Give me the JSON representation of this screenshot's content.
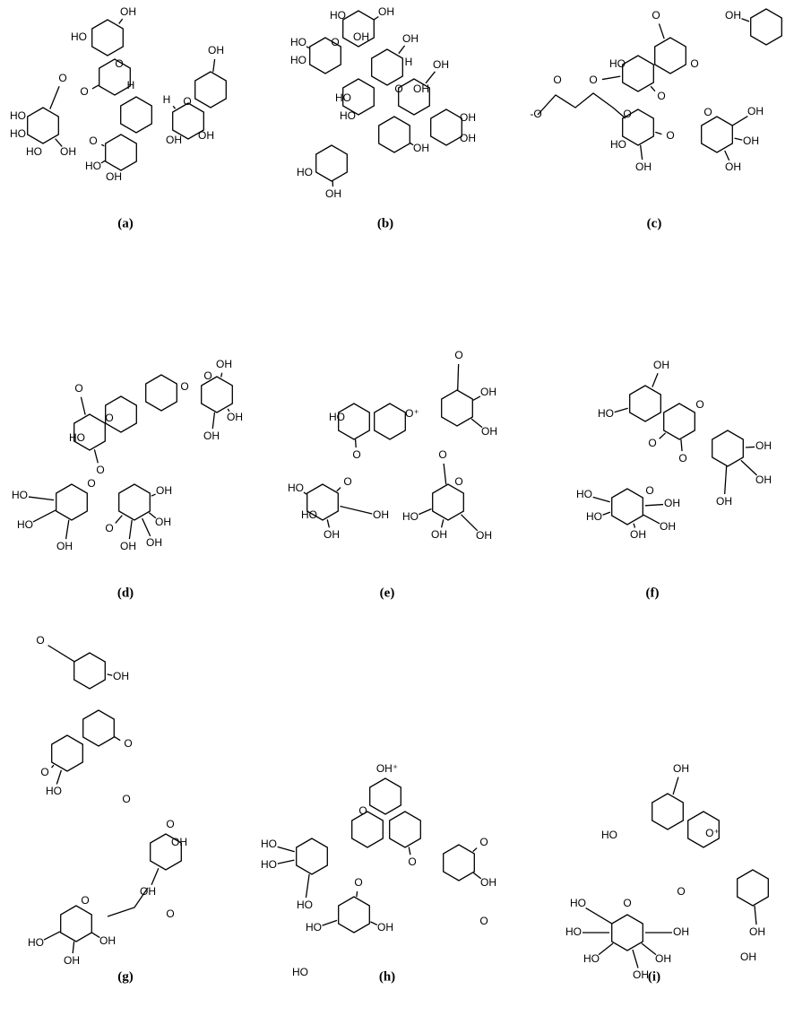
{
  "panels": [
    {
      "label": "(a)",
      "atoms": [
        "OH",
        "HO",
        "O",
        "H",
        "O",
        "O",
        "HO",
        "HO",
        "HO",
        "OH",
        "O",
        "HO",
        "OH",
        "H",
        "O",
        "OH",
        "OH",
        "OH"
      ]
    },
    {
      "label": "(b)",
      "atoms": [
        "HO",
        "OH",
        "HO",
        "HO",
        "O",
        "OH",
        "OH",
        "H",
        "OH",
        "O",
        "OH",
        "HO",
        "HO",
        "OH",
        "OH",
        "HO",
        "OH",
        "OH"
      ]
    },
    {
      "label": "(c)",
      "atoms": [
        "O",
        "OH",
        "HO",
        "O",
        "O",
        "O",
        "-O",
        "O",
        "O",
        "O",
        "OH",
        "O",
        "OH",
        "HO",
        "OH",
        "OH"
      ]
    },
    {
      "label": "(d)",
      "atoms": [
        "OH",
        "O",
        "O",
        "O",
        "O",
        "HO",
        "OH",
        "OH",
        "HO",
        "O",
        "HO",
        "O",
        "O",
        "OH",
        "OH",
        "OH",
        "OH",
        "OH"
      ]
    },
    {
      "label": "(e)",
      "atoms": [
        "O",
        "OH",
        "OH",
        "HO",
        "O⁺",
        "O",
        "O",
        "HO",
        "O",
        "O",
        "HO",
        "OH",
        "OH",
        "HO",
        "OH",
        "OH"
      ]
    },
    {
      "label": "(f)",
      "atoms": [
        "OH",
        "HO",
        "O",
        "O",
        "O",
        "OH",
        "OH",
        "OH",
        "O",
        "HO",
        "HO",
        "OH",
        "OH",
        "OH"
      ]
    },
    {
      "label": "(g)",
      "atoms": [
        "O",
        "OH",
        "O",
        "O",
        "HO",
        "O",
        "O",
        "OH",
        "OH",
        "O",
        "O",
        "HO",
        "OH",
        "OH"
      ]
    },
    {
      "label": "(h)",
      "atoms": [
        "OH⁺",
        "O",
        "HO",
        "HO",
        "O",
        "O",
        "OH",
        "O",
        "O",
        "HO",
        "HO",
        "OH",
        "HO"
      ]
    },
    {
      "label": "(i)",
      "atoms": [
        "OH",
        "HO",
        "O⁺",
        "O",
        "OH",
        "OH",
        "HO",
        "O",
        "HO",
        "HO",
        "OH",
        "OH",
        "OH"
      ]
    }
  ]
}
